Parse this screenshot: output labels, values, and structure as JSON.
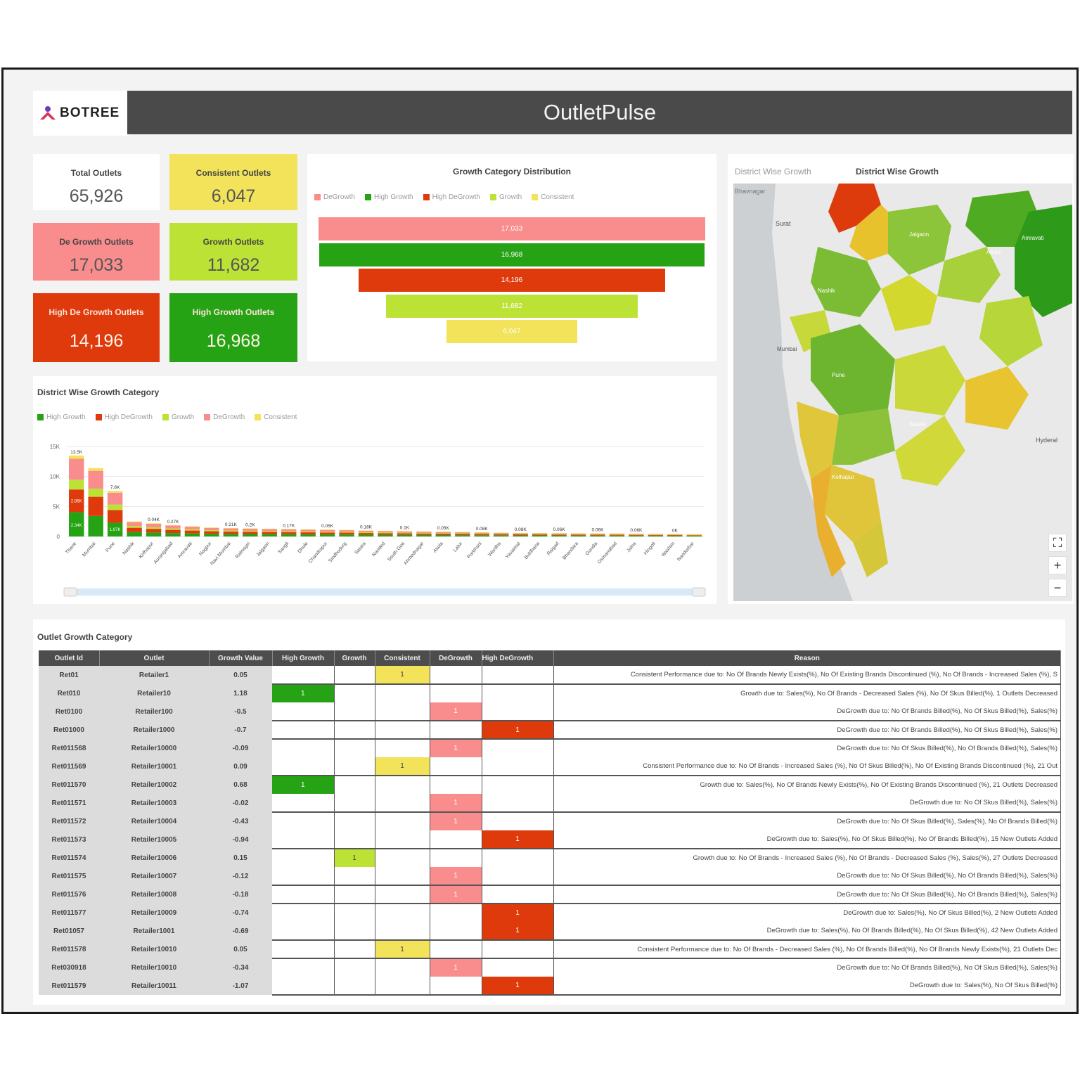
{
  "header": {
    "logo_text": "BOTREE",
    "app_title": "OutletPulse"
  },
  "kpis": [
    {
      "label": "Total Outlets",
      "value": "65,926",
      "color": "#ffffff"
    },
    {
      "label": "Consistent Outlets",
      "value": "6,047",
      "color": "#f2e35a"
    },
    {
      "label": "De Growth Outlets",
      "value": "17,033",
      "color": "#f98c8c"
    },
    {
      "label": "Growth Outlets",
      "value": "11,682",
      "color": "#bde236"
    },
    {
      "label": "High De Growth Outlets",
      "value": "14,196",
      "color": "#de3a0c"
    },
    {
      "label": "High Growth Outlets",
      "value": "16,968",
      "color": "#26a315"
    }
  ],
  "colors": {
    "degrowth": "#f98c8c",
    "high_growth": "#26a315",
    "high_degrowth": "#de3a0c",
    "growth": "#bde236",
    "consistent": "#f2e35a"
  },
  "funnel": {
    "title": "Growth Category Distribution",
    "legend": [
      "DeGrowth",
      "High Growth",
      "High DeGrowth",
      "Growth",
      "Consistent"
    ],
    "chart_data": {
      "type": "bar",
      "categories": [
        "DeGrowth",
        "High Growth",
        "High DeGrowth",
        "Growth",
        "Consistent"
      ],
      "values": [
        17033,
        16968,
        14196,
        11682,
        6047
      ],
      "labels": [
        "17,033",
        "16,968",
        "14,196",
        "11,682",
        "6,047"
      ]
    }
  },
  "map": {
    "tab_inactive": "District Wise Growth",
    "tab_active": "District Wise Growth",
    "place_labels": [
      "Bhavnagar",
      "Surat",
      "Nashik",
      "Pune",
      "Mumbai",
      "Kolhapur",
      "Hyderal",
      "Satara",
      "Jalgaon",
      "Akola",
      "Amravati"
    ],
    "controls": [
      "⛶",
      "+",
      "−"
    ]
  },
  "district_chart": {
    "title": "District Wise Growth Category",
    "legend": [
      "High Growth",
      "High DeGrowth",
      "Growth",
      "DeGrowth",
      "Consistent"
    ],
    "chart_data": {
      "type": "bar",
      "stacked": true,
      "y_ticks": [
        "0",
        "5K",
        "10K",
        "15K"
      ],
      "ylim": [
        0,
        15000
      ],
      "categories": [
        "Thane",
        "Mumbai",
        "Pune",
        "Nashik",
        "Kolhapur",
        "Aurangabad",
        "Amravati",
        "Nagpur",
        "Navi Mumbai",
        "Ratnagiri",
        "Jalgaon",
        "Sangli",
        "Dhule",
        "Chandrapur",
        "Sindhudurg",
        "Satara",
        "Nanded",
        "South Goa",
        "Ahmednagar",
        "Akola",
        "Latur",
        "Parbhani",
        "Wardha",
        "Yavatmal",
        "Buldhana",
        "Raigad",
        "Bhandara",
        "Gondia",
        "Osmanabad",
        "Jalna",
        "Hingoli",
        "Washim",
        "Nandurbar"
      ],
      "totals": [
        13500,
        11400,
        7600,
        2500,
        2200,
        1900,
        1700,
        1500,
        1400,
        1350,
        1300,
        1250,
        1200,
        1150,
        1100,
        1000,
        950,
        900,
        850,
        800,
        750,
        700,
        650,
        600,
        580,
        560,
        540,
        520,
        500,
        480,
        450,
        420,
        380
      ],
      "top_labels": [
        "13.5K",
        "",
        "7.6K",
        "",
        "0.04K",
        "0.27K",
        "",
        "",
        "0.21K",
        "0.2K",
        "",
        "0.17K",
        "",
        "0.05K",
        "",
        "0.16K",
        "",
        "0.1K",
        "",
        "0.05K",
        "",
        "0.08K",
        "",
        "0.08K",
        "",
        "0.06K",
        "",
        "0.06K",
        "",
        "0.06K",
        "",
        "0K",
        ""
      ],
      "inner_labels": [
        [
          "2.34K",
          "2.86K"
        ],
        [
          "",
          ""
        ],
        [
          "1.97K",
          ""
        ]
      ]
    }
  },
  "table": {
    "title": "Outlet Growth Category",
    "columns": [
      "Outlet Id",
      "Outlet",
      "Growth Value",
      "High Growth",
      "Growth",
      "Consistent",
      "DeGrowth",
      "High DeGrowth",
      "Reason"
    ],
    "rows": [
      {
        "id": "Ret01",
        "outlet": "Retailer1",
        "value": "0.05",
        "cat": "consistent",
        "reason": "Consistent Performance due to: No Of Brands Newly Exists(%), No Of Existing Brands Discontinued (%), No Of Brands - Increased Sales (%), S"
      },
      {
        "id": "Ret010",
        "outlet": "Retailer10",
        "value": "1.18",
        "cat": "high_growth",
        "reason": "Growth due to: Sales(%), No Of Brands - Decreased Sales (%), No Of Skus Billed(%), 1 Outlets Decreased"
      },
      {
        "id": "Ret0100",
        "outlet": "Retailer100",
        "value": "-0.5",
        "cat": "degrowth",
        "reason": "DeGrowth due to: No Of Brands Billed(%), No Of Skus Billed(%), Sales(%)"
      },
      {
        "id": "Ret01000",
        "outlet": "Retailer1000",
        "value": "-0.7",
        "cat": "high_degrowth",
        "reason": "DeGrowth due to: No Of Brands Billed(%), No Of Skus Billed(%), Sales(%)"
      },
      {
        "id": "Ret011568",
        "outlet": "Retailer10000",
        "value": "-0.09",
        "cat": "degrowth",
        "reason": "DeGrowth due to: No Of Skus Billed(%), No Of Brands Billed(%), Sales(%)"
      },
      {
        "id": "Ret011569",
        "outlet": "Retailer10001",
        "value": "0.09",
        "cat": "consistent",
        "reason": "Consistent Performance due to: No Of Brands - Increased Sales (%), No Of Skus Billed(%), No Of Existing Brands Discontinued (%), 21 Out"
      },
      {
        "id": "Ret011570",
        "outlet": "Retailer10002",
        "value": "0.68",
        "cat": "high_growth",
        "reason": "Growth due to: Sales(%), No Of Brands Newly Exists(%), No Of Existing Brands Discontinued (%), 21 Outlets Decreased"
      },
      {
        "id": "Ret011571",
        "outlet": "Retailer10003",
        "value": "-0.02",
        "cat": "degrowth",
        "reason": "DeGrowth due to: No Of Skus Billed(%), Sales(%)"
      },
      {
        "id": "Ret011572",
        "outlet": "Retailer10004",
        "value": "-0.43",
        "cat": "degrowth",
        "reason": "DeGrowth due to: No Of Skus Billed(%), Sales(%), No Of Brands Billed(%)"
      },
      {
        "id": "Ret011573",
        "outlet": "Retailer10005",
        "value": "-0.94",
        "cat": "high_degrowth",
        "reason": "DeGrowth due to: Sales(%), No Of Skus Billed(%), No Of Brands Billed(%), 15 New Outlets Added"
      },
      {
        "id": "Ret011574",
        "outlet": "Retailer10006",
        "value": "0.15",
        "cat": "growth",
        "reason": "Growth due to: No Of Brands - Increased Sales (%), No Of Brands - Decreased Sales (%), Sales(%), 27 Outlets Decreased"
      },
      {
        "id": "Ret011575",
        "outlet": "Retailer10007",
        "value": "-0.12",
        "cat": "degrowth",
        "reason": "DeGrowth due to: No Of Skus Billed(%), No Of Brands Billed(%), Sales(%)"
      },
      {
        "id": "Ret011576",
        "outlet": "Retailer10008",
        "value": "-0.18",
        "cat": "degrowth",
        "reason": "DeGrowth due to: No Of Skus Billed(%), No Of Brands Billed(%), Sales(%)"
      },
      {
        "id": "Ret011577",
        "outlet": "Retailer10009",
        "value": "-0.74",
        "cat": "high_degrowth",
        "reason": "DeGrowth due to: Sales(%), No Of Skus Billed(%), 2 New Outlets Added"
      },
      {
        "id": "Ret01057",
        "outlet": "Retailer1001",
        "value": "-0.69",
        "cat": "high_degrowth",
        "reason": "DeGrowth due to: Sales(%), No Of Brands Billed(%), No Of Skus Billed(%), 42 New Outlets Added"
      },
      {
        "id": "Ret011578",
        "outlet": "Retailer10010",
        "value": "0.05",
        "cat": "consistent",
        "reason": "Consistent Performance due to: No Of Brands - Decreased Sales (%), No Of Brands Billed(%), No Of Brands Newly Exists(%), 21 Outlets Dec"
      },
      {
        "id": "Ret030918",
        "outlet": "Retailer10010",
        "value": "-0.34",
        "cat": "degrowth",
        "reason": "DeGrowth due to: No Of Brands Billed(%), No Of Skus Billed(%), Sales(%)"
      },
      {
        "id": "Ret011579",
        "outlet": "Retailer10011",
        "value": "-1.07",
        "cat": "high_degrowth",
        "reason": "DeGrowth due to: Sales(%), No Of Skus Billed(%)"
      }
    ],
    "flag_value": "1"
  }
}
